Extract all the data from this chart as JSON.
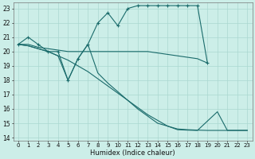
{
  "xlabel": "Humidex (Indice chaleur)",
  "bg_color": "#cceee8",
  "grid_color": "#aad8d0",
  "line_color": "#1a6b6b",
  "xlim": [
    -0.5,
    23.5
  ],
  "ylim": [
    13.8,
    23.4
  ],
  "xticks": [
    0,
    1,
    2,
    3,
    4,
    5,
    6,
    7,
    8,
    9,
    10,
    11,
    12,
    13,
    14,
    15,
    16,
    17,
    18,
    19,
    20,
    21,
    22,
    23
  ],
  "yticks": [
    14,
    15,
    16,
    17,
    18,
    19,
    20,
    21,
    22,
    23
  ],
  "s1x": [
    0,
    1,
    2,
    3,
    4,
    5,
    6,
    7,
    8,
    9,
    10,
    11,
    12,
    13,
    14,
    15,
    16,
    17,
    18,
    19
  ],
  "s1y": [
    20.5,
    21.0,
    20.5,
    20.0,
    20.0,
    18.0,
    19.5,
    20.5,
    22.0,
    22.7,
    21.8,
    23.0,
    23.2,
    23.2,
    23.2,
    23.2,
    23.2,
    23.2,
    23.2,
    19.2
  ],
  "s2x": [
    0,
    1,
    2,
    3,
    4,
    5,
    6,
    7,
    8,
    9,
    10,
    11,
    12,
    13,
    14,
    15,
    16,
    17,
    18,
    19
  ],
  "s2y": [
    20.5,
    20.5,
    20.3,
    20.2,
    20.1,
    20.0,
    20.0,
    20.0,
    20.0,
    20.0,
    20.0,
    20.0,
    20.0,
    20.0,
    19.9,
    19.8,
    19.7,
    19.6,
    19.5,
    19.2
  ],
  "s3x": [
    0,
    1,
    2,
    3,
    4,
    5,
    6,
    7,
    8,
    9,
    10,
    11,
    12,
    13,
    14,
    15,
    16,
    17,
    18,
    19,
    20,
    21,
    22,
    23
  ],
  "s3y": [
    20.5,
    20.4,
    20.2,
    20.0,
    19.7,
    19.4,
    19.0,
    18.6,
    18.1,
    17.6,
    17.1,
    16.6,
    16.1,
    15.6,
    15.2,
    14.8,
    14.6,
    14.55,
    14.52,
    14.5,
    14.5,
    14.5,
    14.5,
    14.5
  ],
  "s4x": [
    0,
    1,
    2,
    3,
    4,
    5,
    6,
    7,
    8,
    9,
    10,
    11,
    12,
    13,
    14,
    15,
    16,
    17,
    18,
    20,
    21,
    22,
    23
  ],
  "s4y": [
    20.5,
    20.4,
    20.2,
    20.0,
    19.7,
    18.0,
    19.5,
    20.5,
    18.5,
    17.8,
    17.2,
    16.6,
    16.0,
    15.5,
    15.0,
    14.8,
    14.55,
    14.52,
    14.5,
    15.8,
    14.5,
    14.5,
    14.5
  ]
}
